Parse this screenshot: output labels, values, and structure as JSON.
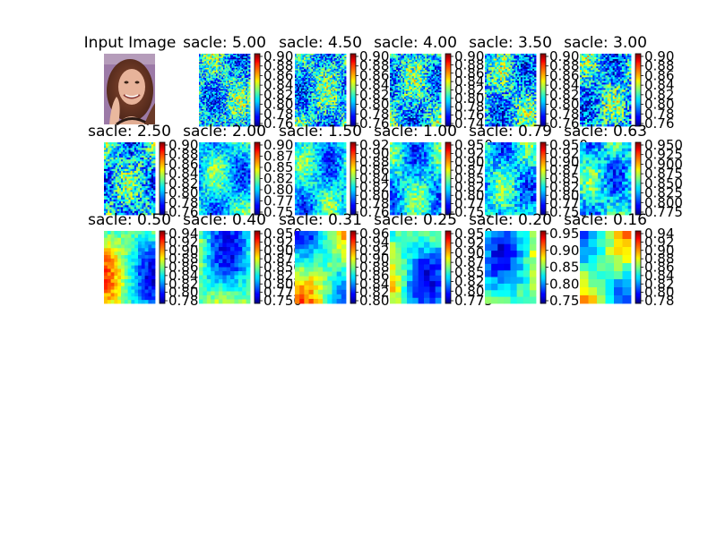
{
  "figure": {
    "input_title": "Input Image"
  },
  "chart_data": {
    "type": "heatmap",
    "colormap": "jet",
    "panels": [
      {
        "title": "sacle: 5.00",
        "tick_labels": [
          "0.90",
          "0.88",
          "0.86",
          "0.84",
          "0.82",
          "0.80",
          "0.78",
          "0.76"
        ]
      },
      {
        "title": "sacle: 4.50",
        "tick_labels": [
          "0.90",
          "0.88",
          "0.86",
          "0.84",
          "0.82",
          "0.80",
          "0.78",
          "0.76"
        ]
      },
      {
        "title": "sacle: 4.00",
        "tick_labels": [
          "0.90",
          "0.88",
          "0.86",
          "0.84",
          "0.82",
          "0.80",
          "0.78",
          "0.76",
          "0.74"
        ]
      },
      {
        "title": "sacle: 3.50",
        "tick_labels": [
          "0.90",
          "0.88",
          "0.86",
          "0.84",
          "0.82",
          "0.80",
          "0.78",
          "0.76"
        ]
      },
      {
        "title": "sacle: 3.00",
        "tick_labels": [
          "0.90",
          "0.88",
          "0.86",
          "0.84",
          "0.82",
          "0.80",
          "0.78",
          "0.76"
        ]
      },
      {
        "title": "sacle: 2.50",
        "tick_labels": [
          "0.90",
          "0.88",
          "0.86",
          "0.84",
          "0.82",
          "0.80",
          "0.78",
          "0.76"
        ]
      },
      {
        "title": "sacle: 2.00",
        "tick_labels": [
          "0.90",
          "0.87",
          "0.85",
          "0.82",
          "0.80",
          "0.77",
          "0.75"
        ]
      },
      {
        "title": "sacle: 1.50",
        "tick_labels": [
          "0.92",
          "0.90",
          "0.88",
          "0.86",
          "0.84",
          "0.82",
          "0.80",
          "0.78",
          "0.76"
        ]
      },
      {
        "title": "sacle: 1.00",
        "tick_labels": [
          "0.950",
          "0.925",
          "0.900",
          "0.875",
          "0.850",
          "0.825",
          "0.800",
          "0.775",
          "0.750"
        ]
      },
      {
        "title": "sacle: 0.79",
        "tick_labels": [
          "0.950",
          "0.925",
          "0.900",
          "0.875",
          "0.850",
          "0.825",
          "0.800",
          "0.775",
          "0.750"
        ]
      },
      {
        "title": "sacle: 0.63",
        "tick_labels": [
          "0.950",
          "0.925",
          "0.900",
          "0.875",
          "0.850",
          "0.825",
          "0.800",
          "0.775"
        ]
      },
      {
        "title": "sacle: 0.50",
        "tick_labels": [
          "0.94",
          "0.92",
          "0.90",
          "0.88",
          "0.86",
          "0.84",
          "0.82",
          "0.80",
          "0.78"
        ]
      },
      {
        "title": "sacle: 0.40",
        "tick_labels": [
          "0.950",
          "0.925",
          "0.900",
          "0.875",
          "0.850",
          "0.825",
          "0.800",
          "0.775",
          "0.750"
        ]
      },
      {
        "title": "sacle: 0.31",
        "tick_labels": [
          "0.96",
          "0.94",
          "0.92",
          "0.90",
          "0.88",
          "0.86",
          "0.84",
          "0.82",
          "0.80"
        ]
      },
      {
        "title": "sacle: 0.25",
        "tick_labels": [
          "0.950",
          "0.925",
          "0.900",
          "0.875",
          "0.850",
          "0.825",
          "0.800",
          "0.775"
        ]
      },
      {
        "title": "sacle: 0.20",
        "tick_labels": [
          "0.95",
          "0.90",
          "0.85",
          "0.80",
          "0.75"
        ]
      },
      {
        "title": "sacle: 0.16",
        "tick_labels": [
          "0.94",
          "0.92",
          "0.90",
          "0.88",
          "0.86",
          "0.84",
          "0.82",
          "0.80",
          "0.78"
        ]
      }
    ]
  }
}
